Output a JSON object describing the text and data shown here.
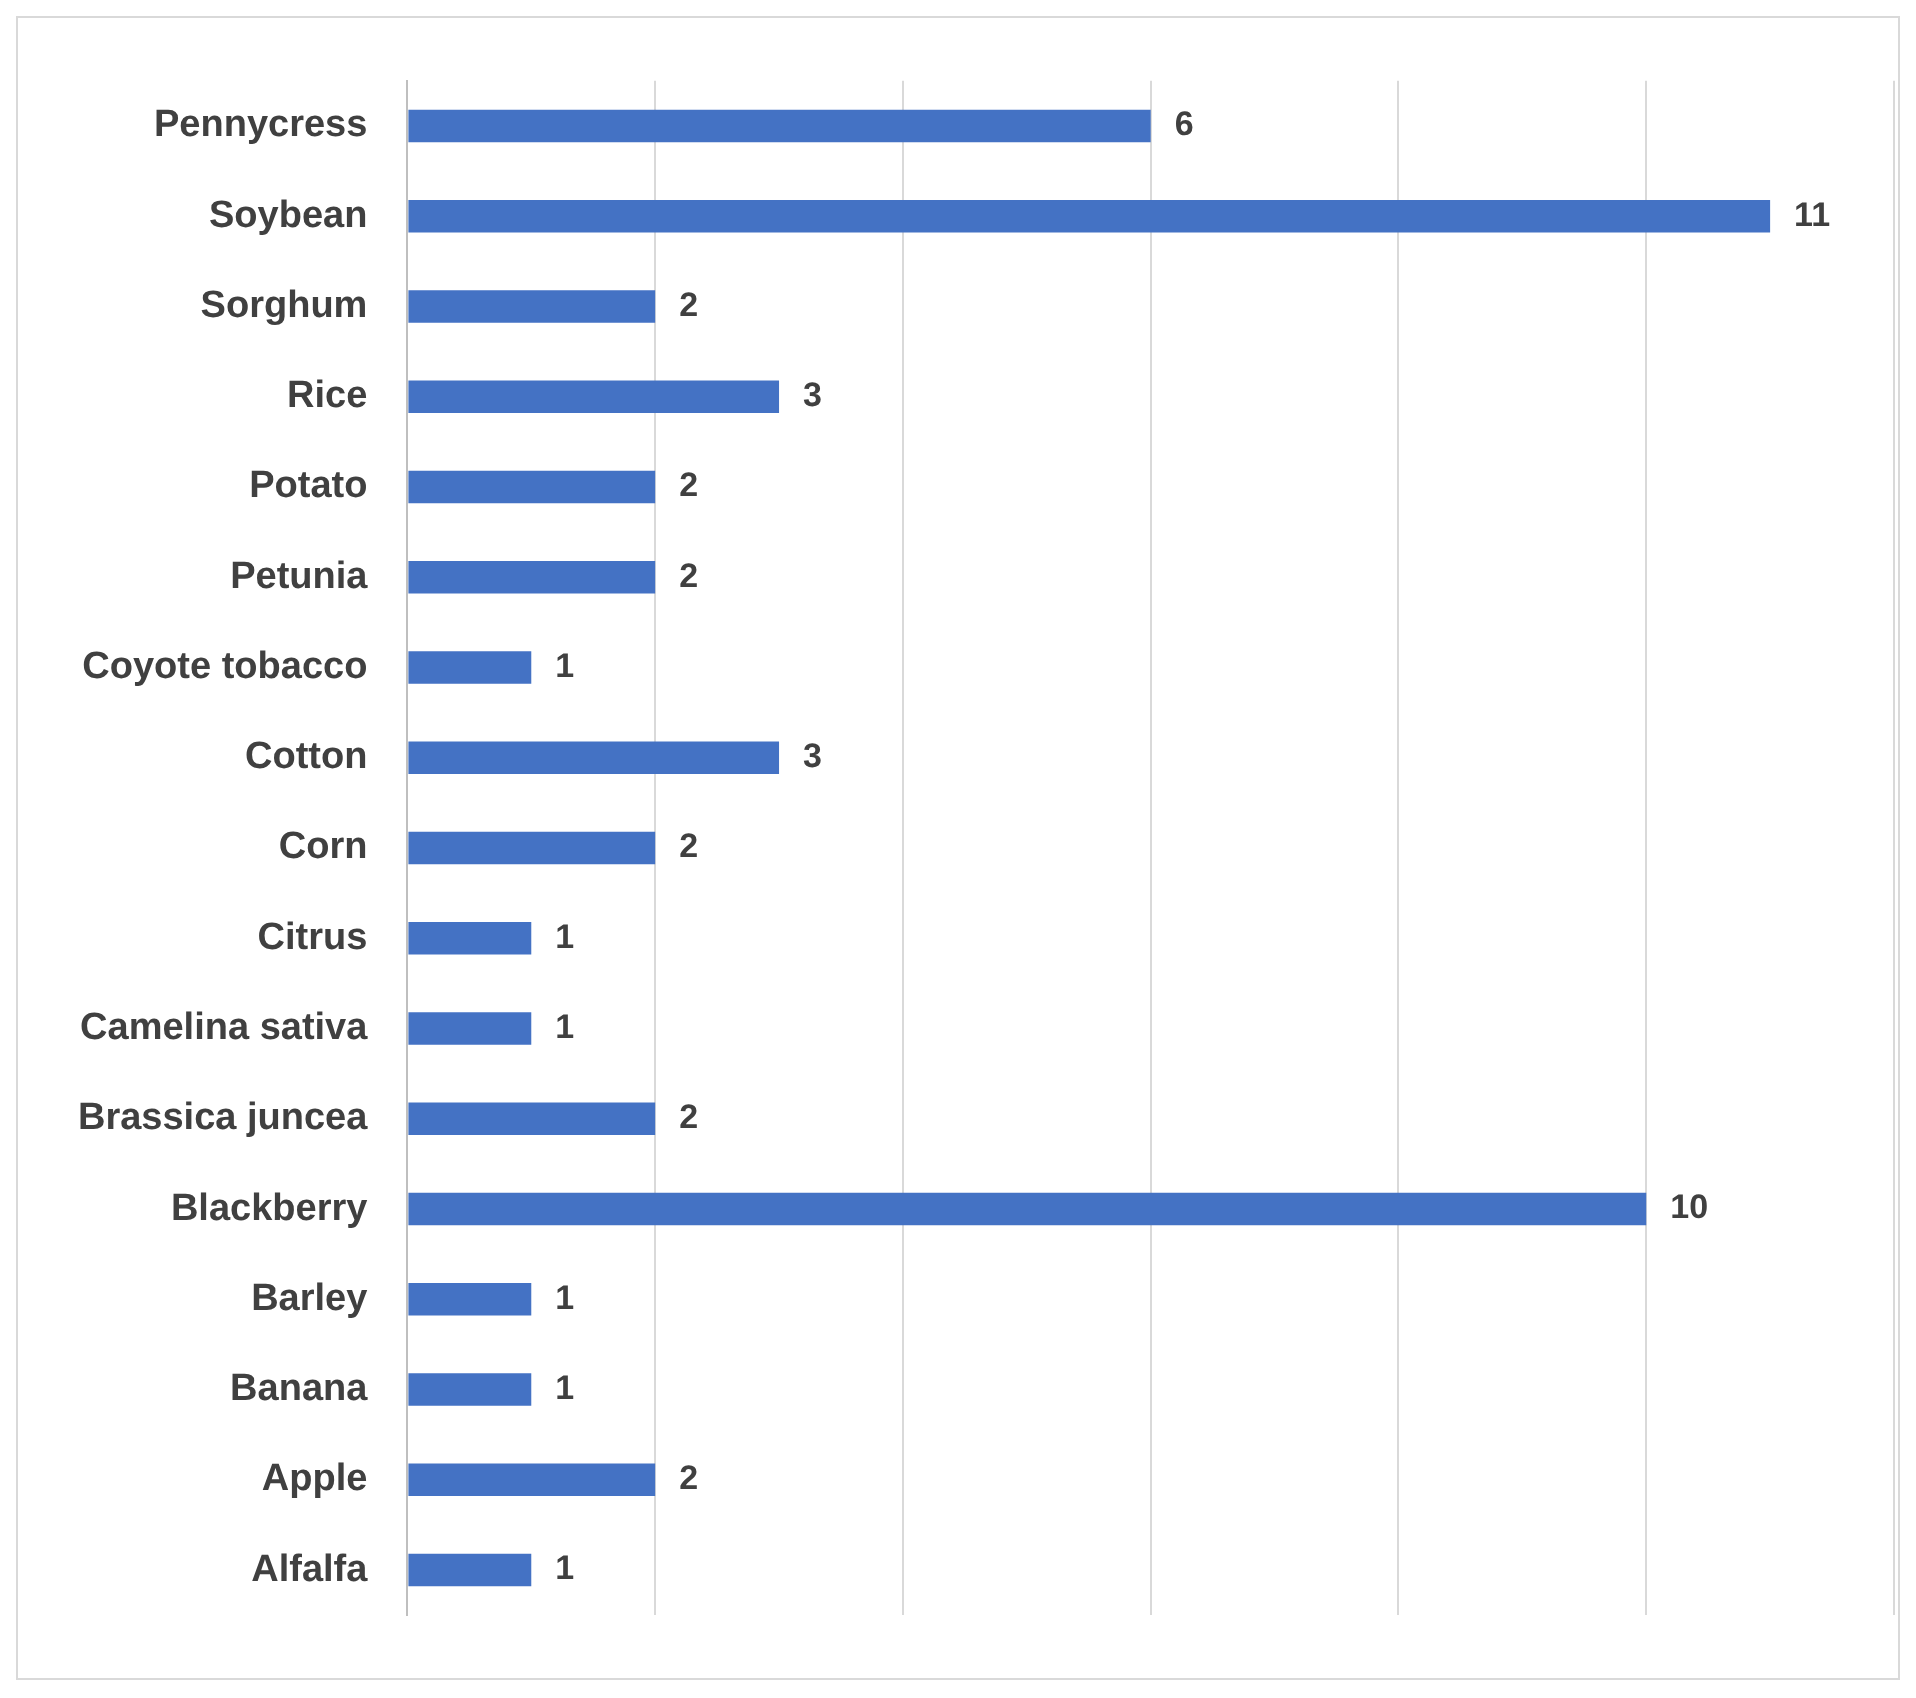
{
  "chart_data": {
    "type": "bar",
    "orientation": "horizontal",
    "categories": [
      "Pennycress",
      "Soybean",
      "Sorghum",
      "Rice",
      "Potato",
      "Petunia",
      "Coyote tobacco",
      "Cotton",
      "Corn",
      "Citrus",
      "Camelina sativa",
      "Brassica juncea",
      "Blackberry",
      "Barley",
      "Banana",
      "Apple",
      "Alfalfa"
    ],
    "values": [
      6,
      11,
      2,
      3,
      2,
      2,
      1,
      3,
      2,
      1,
      1,
      2,
      10,
      1,
      1,
      2,
      1
    ],
    "color": "#4472c4",
    "xlim": [
      0,
      12
    ],
    "xticks": [
      {
        "value": 0,
        "label": null
      },
      {
        "value": 2,
        "label": null
      },
      {
        "value": 4,
        "label": null
      },
      {
        "value": 6,
        "label": null
      },
      {
        "value": 8,
        "label": null
      },
      {
        "value": 10,
        "label": null
      },
      {
        "value": 12,
        "label": null
      }
    ],
    "tick_labels": "y",
    "grid": "x",
    "data_labels": true
  }
}
